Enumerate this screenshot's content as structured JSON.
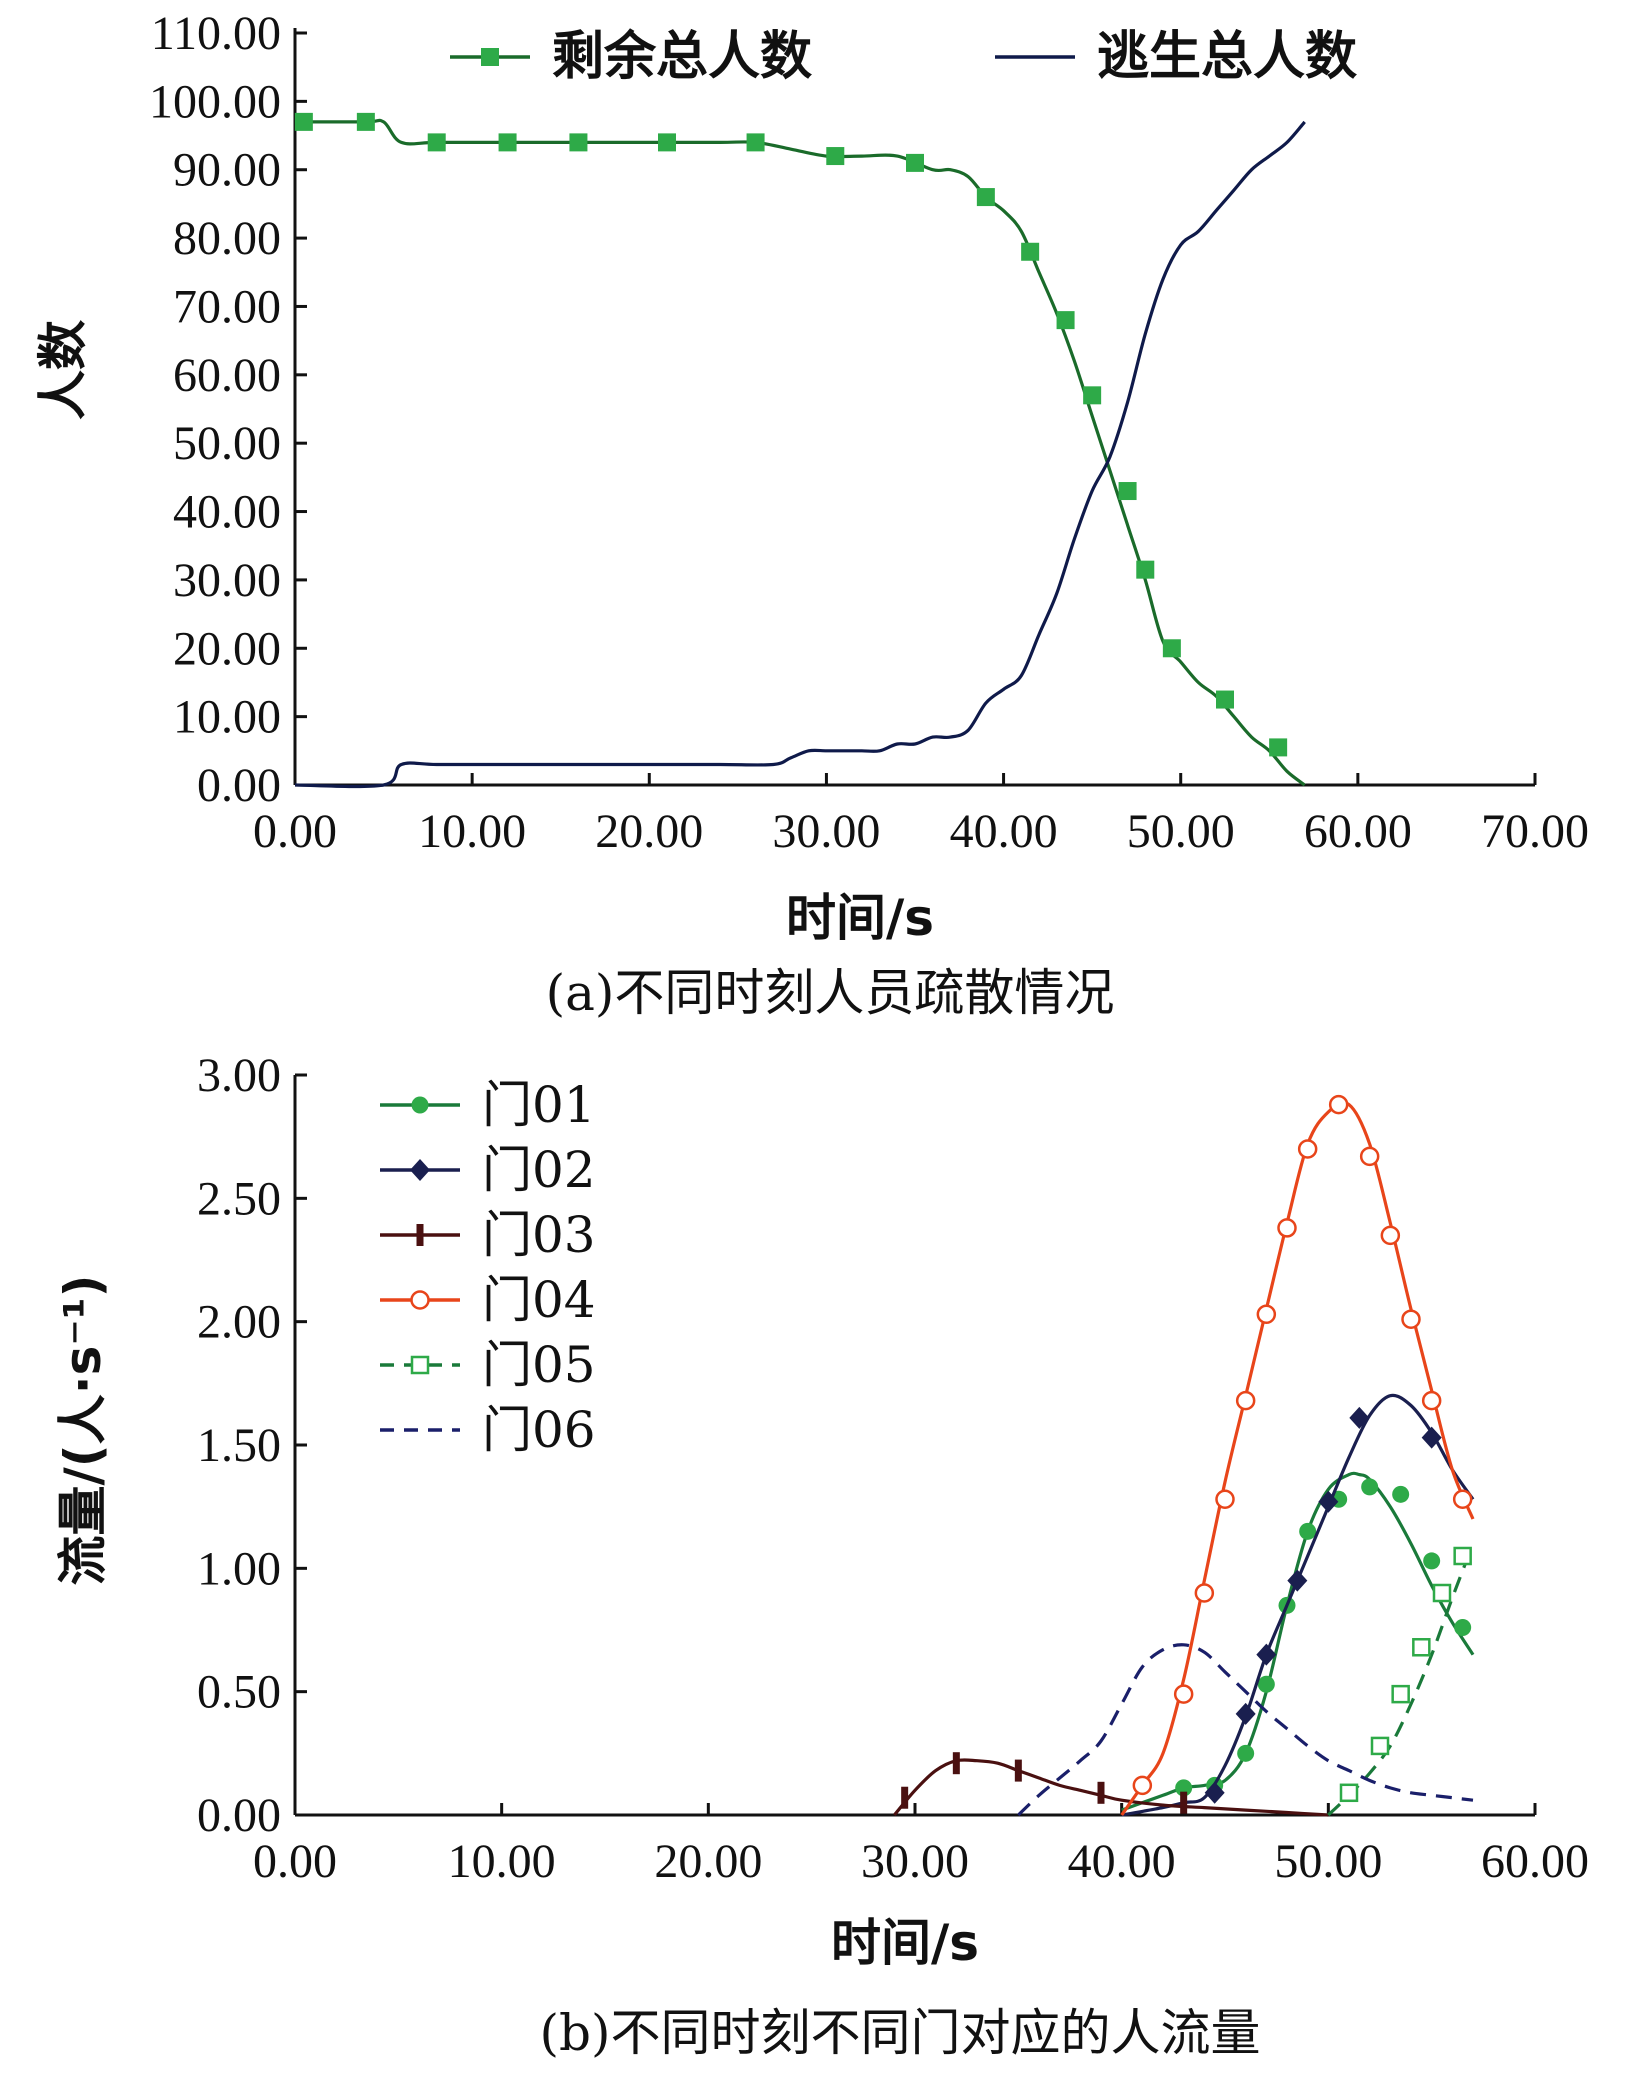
{
  "chart_data": [
    {
      "type": "line",
      "caption": "(a)不同时刻人员疏散情况",
      "xlabel": "时间/s",
      "ylabel": "人数",
      "xlim": [
        0,
        70
      ],
      "ylim": [
        0,
        110
      ],
      "xticks": [
        "0.00",
        "10.00",
        "20.00",
        "30.00",
        "40.00",
        "50.00",
        "60.00",
        "70.00"
      ],
      "yticks": [
        "0.00",
        "10.00",
        "20.00",
        "30.00",
        "40.00",
        "50.00",
        "60.00",
        "70.00",
        "80.00",
        "90.00",
        "100.00",
        "110.00"
      ],
      "legend_position": "top",
      "series": [
        {
          "name": "剩余总人数",
          "color": "#1a6b2a",
          "marker": "square",
          "marker_color": "#2eaa48",
          "x": [
            0,
            4,
            5,
            6,
            8,
            12,
            16,
            20,
            24,
            26,
            28,
            30,
            32,
            34,
            36,
            37,
            38,
            39,
            40,
            41,
            42,
            43,
            44,
            45,
            46,
            47,
            48,
            49,
            50,
            51,
            52,
            53,
            54,
            55,
            56,
            57
          ],
          "y": [
            97,
            97,
            97,
            94,
            94,
            94,
            94,
            94,
            94,
            94,
            93,
            92,
            92,
            92,
            90,
            90,
            89,
            86,
            84,
            81,
            75,
            69,
            62,
            54,
            46,
            38,
            30,
            21,
            18,
            15,
            13,
            10,
            7,
            5,
            2,
            0
          ],
          "markers_x": [
            0.5,
            4,
            8,
            12,
            16,
            21,
            26,
            30.5,
            35,
            39,
            41.5,
            43.5,
            45,
            47,
            48,
            49.5,
            52.5,
            55.5
          ],
          "markers_y": [
            97,
            97,
            94,
            94,
            94,
            94,
            94,
            92,
            91,
            86,
            78,
            68,
            57,
            43,
            31.5,
            20,
            12.5,
            5.5
          ]
        },
        {
          "name": "逃生总人数",
          "color": "#0f1a4a",
          "marker": "none",
          "x": [
            0,
            5,
            6,
            8,
            12,
            16,
            20,
            24,
            27,
            28,
            29,
            30,
            31,
            32,
            33,
            34,
            35,
            36,
            37,
            38,
            39,
            40,
            41,
            42,
            43,
            44,
            45,
            46,
            47,
            48,
            49,
            50,
            51,
            52,
            53,
            54,
            55,
            56,
            57
          ],
          "y": [
            0,
            0,
            3,
            3,
            3,
            3,
            3,
            3,
            3,
            4,
            5,
            5,
            5,
            5,
            5,
            6,
            6,
            7,
            7,
            8,
            12,
            14,
            16,
            22,
            28,
            36,
            43,
            48,
            56,
            66,
            74,
            79,
            81,
            84,
            87,
            90,
            92,
            94,
            97
          ]
        }
      ]
    },
    {
      "type": "line",
      "caption": "(b)不同时刻不同门对应的人流量",
      "xlabel": "时间/s",
      "ylabel": "流量/(人·s⁻¹)",
      "xlim": [
        0,
        60
      ],
      "ylim": [
        0,
        3
      ],
      "xticks": [
        "0.00",
        "10.00",
        "20.00",
        "30.00",
        "40.00",
        "50.00",
        "60.00"
      ],
      "yticks": [
        "0.00",
        "0.50",
        "1.00",
        "1.50",
        "2.00",
        "2.50",
        "3.00"
      ],
      "legend_position": "top-left",
      "series": [
        {
          "name": "门01",
          "color": "#1a7a3a",
          "marker": "circle-filled",
          "marker_color": "#2eaa48",
          "x": [
            40,
            42,
            43,
            44,
            45,
            46,
            47,
            48,
            49,
            50,
            51,
            51.5,
            52,
            53,
            54,
            55,
            56,
            57
          ],
          "y": [
            0.02,
            0.08,
            0.11,
            0.12,
            0.14,
            0.25,
            0.5,
            0.85,
            1.15,
            1.32,
            1.38,
            1.38,
            1.36,
            1.25,
            1.1,
            0.93,
            0.78,
            0.65
          ],
          "markers_x": [
            43,
            44.5,
            46,
            47,
            48,
            49,
            50.5,
            52,
            53.5,
            55,
            56.5
          ],
          "markers_y": [
            0.11,
            0.12,
            0.25,
            0.53,
            0.85,
            1.15,
            1.28,
            1.33,
            1.3,
            1.03,
            0.76
          ]
        },
        {
          "name": "门02",
          "color": "#1a1f4f",
          "marker": "diamond",
          "marker_color": "#1a1f4f",
          "x": [
            40,
            42,
            43,
            44,
            45,
            46,
            47,
            48,
            49,
            50,
            51,
            52,
            53,
            54,
            55,
            56,
            57
          ],
          "y": [
            0.0,
            0.03,
            0.05,
            0.07,
            0.2,
            0.4,
            0.65,
            0.85,
            1.05,
            1.25,
            1.45,
            1.62,
            1.7,
            1.66,
            1.55,
            1.4,
            1.28
          ],
          "markers_x": [
            44.5,
            46,
            47,
            48.5,
            50,
            51.5,
            55
          ],
          "markers_y": [
            0.09,
            0.41,
            0.65,
            0.95,
            1.27,
            1.61,
            1.53
          ]
        },
        {
          "name": "门03",
          "color": "#4a1010",
          "marker": "bar",
          "marker_color": "#4a1010",
          "x": [
            29,
            30,
            31,
            32,
            33,
            34,
            35,
            36,
            37,
            38,
            39,
            40,
            42,
            44,
            46,
            48,
            50
          ],
          "y": [
            0.0,
            0.1,
            0.18,
            0.22,
            0.22,
            0.21,
            0.18,
            0.15,
            0.12,
            0.1,
            0.08,
            0.06,
            0.04,
            0.03,
            0.02,
            0.01,
            0.0
          ],
          "markers_x": [
            29.5,
            32,
            35,
            39,
            43
          ],
          "markers_y": [
            0.07,
            0.21,
            0.18,
            0.09,
            0.05
          ]
        },
        {
          "name": "门04",
          "color": "#e8451a",
          "marker": "circle-open",
          "marker_color": "#e8451a",
          "x": [
            40,
            41,
            42,
            43,
            44,
            45,
            46,
            47,
            48,
            49,
            50,
            51,
            52,
            53,
            54,
            55,
            56,
            57
          ],
          "y": [
            0.0,
            0.12,
            0.25,
            0.55,
            0.95,
            1.35,
            1.7,
            2.05,
            2.4,
            2.72,
            2.85,
            2.88,
            2.72,
            2.4,
            2.05,
            1.72,
            1.4,
            1.2
          ],
          "markers_x": [
            41,
            43,
            44,
            45,
            46,
            47,
            48,
            49,
            50.5,
            52,
            53,
            54,
            55,
            56.5
          ],
          "markers_y": [
            0.12,
            0.49,
            0.9,
            1.28,
            1.68,
            2.03,
            2.38,
            2.7,
            2.88,
            2.67,
            2.35,
            2.01,
            1.68,
            1.28
          ]
        },
        {
          "name": "门05",
          "color": "#1a7a3a",
          "marker": "square-open",
          "marker_color": "#2eaa48",
          "dashed": true,
          "x": [
            50,
            51,
            52,
            53,
            54,
            55,
            56,
            57
          ],
          "y": [
            0.0,
            0.08,
            0.17,
            0.28,
            0.45,
            0.65,
            0.88,
            1.1
          ],
          "markers_x": [
            51,
            52.5,
            53.5,
            54.5,
            55.5,
            56.5
          ],
          "markers_y": [
            0.09,
            0.28,
            0.49,
            0.68,
            0.9,
            1.05
          ]
        },
        {
          "name": "门06",
          "color": "#1a1f6a",
          "marker": "none",
          "dashed": true,
          "x": [
            35,
            36,
            37,
            38,
            39,
            40,
            41,
            42,
            43,
            44,
            45,
            46,
            47,
            48,
            49,
            50,
            51,
            52,
            53,
            54,
            55,
            56,
            57
          ],
          "y": [
            0.0,
            0.08,
            0.15,
            0.22,
            0.3,
            0.45,
            0.6,
            0.67,
            0.69,
            0.66,
            0.58,
            0.5,
            0.42,
            0.35,
            0.28,
            0.22,
            0.18,
            0.14,
            0.11,
            0.09,
            0.08,
            0.07,
            0.06
          ]
        }
      ]
    }
  ]
}
